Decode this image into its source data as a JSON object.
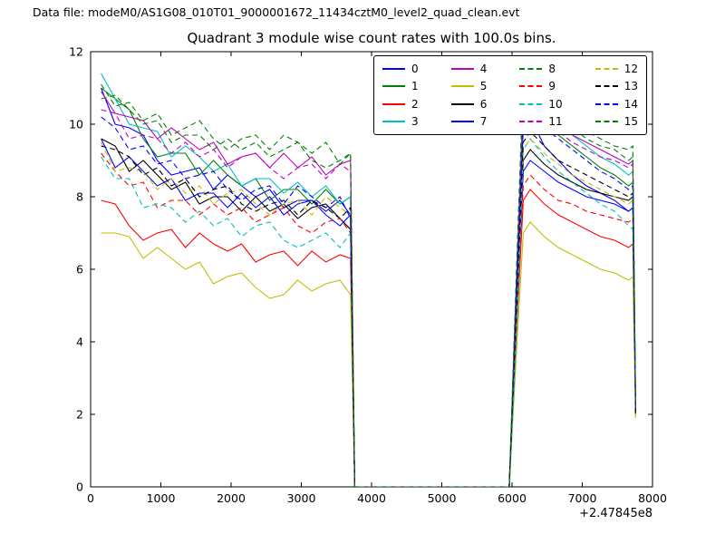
{
  "header": {
    "data_file_text": "Data file: modeM0/AS1G08_010T01_9000001672_11434cztM0_level2_quad_clean.evt"
  },
  "chart_data": {
    "type": "line",
    "title": "Quadrant 3 module wise count rates with 100.0s bins.",
    "xlabel": "",
    "ylabel": "",
    "x_axis_offset_label": "+2.47845e8",
    "xlim": [
      0,
      8000
    ],
    "ylim": [
      0,
      12
    ],
    "xticks": [
      0,
      1000,
      2000,
      3000,
      4000,
      5000,
      6000,
      7000,
      8000
    ],
    "yticks": [
      0,
      2,
      4,
      6,
      8,
      10,
      12
    ],
    "grid": false,
    "legend": {
      "columns": 4,
      "location": "upper center",
      "labels": [
        "0",
        "1",
        "2",
        "3",
        "4",
        "5",
        "6",
        "7",
        "8",
        "9",
        "10",
        "11",
        "12",
        "13",
        "14",
        "15"
      ]
    },
    "x": [
      150,
      350,
      550,
      750,
      950,
      1150,
      1350,
      1550,
      1750,
      1950,
      2150,
      2350,
      2550,
      2750,
      2950,
      3150,
      3350,
      3550,
      3700,
      3760,
      5960,
      6060,
      6160,
      6260,
      6460,
      6660,
      6860,
      7060,
      7260,
      7460,
      7660,
      7720,
      7760
    ],
    "series": [
      {
        "name": "0",
        "color": "#0000ff",
        "linestyle": "solid",
        "values": [
          11.0,
          10.0,
          9.9,
          9.7,
          9.0,
          8.6,
          8.7,
          8.8,
          8.2,
          8.6,
          8.3,
          8.0,
          8.2,
          7.7,
          7.9,
          7.9,
          7.6,
          7.9,
          7.5,
          0,
          0,
          5.1,
          9.9,
          10.2,
          9.4,
          9.0,
          8.6,
          8.3,
          8.1,
          7.9,
          7.6,
          7.7,
          2.0
        ]
      },
      {
        "name": "1",
        "color": "#007f00",
        "linestyle": "solid",
        "values": [
          11.0,
          10.7,
          10.4,
          9.6,
          9.1,
          9.2,
          9.2,
          8.6,
          9.0,
          8.6,
          8.3,
          8.5,
          7.9,
          8.2,
          8.2,
          7.8,
          8.2,
          7.8,
          8.0,
          0,
          0,
          5.3,
          10.2,
          10.5,
          10.1,
          9.7,
          9.4,
          9.1,
          8.8,
          8.6,
          8.3,
          8.4,
          2.1
        ]
      },
      {
        "name": "2",
        "color": "#ff0000",
        "linestyle": "solid",
        "values": [
          7.9,
          7.8,
          7.2,
          6.8,
          7.0,
          7.1,
          6.6,
          7.0,
          6.7,
          6.5,
          6.7,
          6.2,
          6.4,
          6.5,
          6.1,
          6.5,
          6.2,
          6.4,
          6.3,
          0,
          0,
          4.1,
          7.9,
          8.2,
          7.8,
          7.5,
          7.3,
          7.1,
          6.9,
          6.8,
          6.6,
          6.7,
          2.0
        ]
      },
      {
        "name": "3",
        "color": "#00bfbf",
        "linestyle": "solid",
        "values": [
          11.4,
          10.7,
          10.0,
          9.9,
          9.8,
          9.1,
          9.4,
          9.1,
          8.7,
          8.9,
          8.3,
          8.5,
          8.5,
          8.1,
          8.4,
          8.0,
          8.3,
          7.8,
          8.0,
          0,
          0,
          5.6,
          10.9,
          11.3,
          10.5,
          10.1,
          9.7,
          9.4,
          9.1,
          8.9,
          8.6,
          8.7,
          2.1
        ]
      },
      {
        "name": "4",
        "color": "#bf00bf",
        "linestyle": "solid",
        "values": [
          10.9,
          10.3,
          10.2,
          10.1,
          9.6,
          9.9,
          9.6,
          9.3,
          9.5,
          8.9,
          9.1,
          9.2,
          8.8,
          9.2,
          8.8,
          9.1,
          8.6,
          8.9,
          9.0,
          0,
          0,
          5.4,
          10.5,
          10.8,
          10.3,
          10.0,
          9.7,
          9.5,
          9.3,
          9.1,
          8.9,
          9.0,
          2.1
        ]
      },
      {
        "name": "5",
        "color": "#bfbf00",
        "linestyle": "solid",
        "values": [
          7.0,
          7.0,
          6.9,
          6.3,
          6.6,
          6.3,
          6.0,
          6.2,
          5.6,
          5.8,
          5.9,
          5.5,
          5.2,
          5.3,
          5.7,
          5.4,
          5.6,
          5.7,
          5.3,
          0,
          0,
          3.6,
          7.0,
          7.3,
          6.9,
          6.6,
          6.4,
          6.2,
          6.0,
          5.9,
          5.7,
          5.8,
          1.9
        ]
      },
      {
        "name": "6",
        "color": "#000000",
        "linestyle": "solid",
        "values": [
          9.6,
          9.4,
          8.7,
          9.0,
          8.6,
          8.2,
          8.4,
          7.8,
          8.0,
          8.0,
          7.6,
          8.0,
          7.6,
          7.8,
          7.4,
          7.7,
          7.8,
          7.4,
          7.1,
          0,
          0,
          4.7,
          9.0,
          9.3,
          8.9,
          8.6,
          8.4,
          8.2,
          8.1,
          8.0,
          7.9,
          8.0,
          2.0
        ]
      },
      {
        "name": "7",
        "color": "#0000ff",
        "linestyle": "solid",
        "values": [
          9.6,
          8.8,
          9.1,
          8.7,
          8.3,
          8.5,
          7.9,
          8.1,
          8.1,
          7.7,
          8.1,
          7.7,
          8.0,
          7.5,
          7.8,
          7.9,
          7.5,
          7.2,
          7.5,
          0,
          0,
          4.6,
          8.7,
          9.0,
          8.7,
          8.4,
          8.2,
          8.0,
          7.9,
          7.8,
          7.6,
          7.7,
          2.0
        ]
      },
      {
        "name": "8",
        "color": "#007f00",
        "linestyle": "dashed",
        "values": [
          10.7,
          10.8,
          10.4,
          10.0,
          10.1,
          9.5,
          9.7,
          9.7,
          9.3,
          9.6,
          9.3,
          9.5,
          9.1,
          9.3,
          9.5,
          9.0,
          8.8,
          9.0,
          9.2,
          0,
          0,
          5.5,
          10.6,
          10.9,
          10.4,
          10.1,
          9.9,
          9.6,
          9.4,
          9.3,
          9.0,
          9.1,
          2.2
        ]
      },
      {
        "name": "9",
        "color": "#ff0000",
        "linestyle": "dashed",
        "values": [
          9.2,
          8.7,
          8.3,
          8.4,
          7.7,
          7.9,
          7.9,
          7.5,
          7.8,
          7.5,
          7.7,
          7.3,
          7.5,
          7.7,
          7.2,
          7.0,
          7.3,
          7.4,
          7.0,
          0,
          0,
          4.4,
          8.3,
          8.6,
          8.2,
          7.9,
          7.8,
          7.6,
          7.5,
          7.4,
          7.3,
          7.4,
          2.0
        ]
      },
      {
        "name": "10",
        "color": "#00bfbf",
        "linestyle": "dashed",
        "values": [
          9.1,
          8.5,
          8.5,
          7.7,
          7.8,
          7.7,
          7.3,
          7.6,
          7.2,
          7.4,
          6.9,
          7.2,
          7.3,
          6.8,
          6.6,
          6.8,
          7.0,
          6.6,
          7.0,
          0,
          0,
          3.9,
          9.3,
          9.6,
          9.1,
          8.7,
          8.4,
          8.1,
          7.8,
          7.6,
          7.2,
          7.1,
          2.1
        ]
      },
      {
        "name": "11",
        "color": "#bf00bf",
        "linestyle": "dashed",
        "values": [
          10.4,
          10.3,
          9.6,
          9.7,
          9.6,
          9.2,
          9.5,
          9.1,
          9.3,
          8.8,
          9.1,
          9.2,
          8.8,
          8.5,
          8.8,
          8.9,
          8.5,
          8.9,
          8.7,
          0,
          0,
          5.3,
          10.3,
          10.6,
          10.1,
          9.8,
          9.5,
          9.3,
          9.1,
          9.0,
          8.8,
          8.9,
          2.1
        ]
      },
      {
        "name": "12",
        "color": "#bfbf00",
        "linestyle": "dashed",
        "values": [
          9.5,
          8.7,
          8.8,
          8.7,
          8.2,
          8.5,
          8.1,
          8.3,
          7.8,
          8.1,
          8.2,
          7.8,
          7.5,
          7.8,
          7.9,
          7.5,
          8.0,
          7.7,
          7.5,
          0,
          0,
          4.8,
          9.3,
          9.6,
          9.2,
          8.9,
          8.6,
          8.4,
          8.2,
          8.0,
          7.8,
          7.9,
          2.0
        ]
      },
      {
        "name": "13",
        "color": "#000000",
        "linestyle": "dashed",
        "values": [
          9.4,
          9.3,
          9.1,
          8.6,
          8.8,
          8.3,
          8.5,
          8.0,
          8.2,
          8.3,
          7.8,
          7.6,
          7.8,
          7.9,
          7.5,
          7.9,
          7.7,
          7.4,
          7.7,
          0,
          0,
          4.9,
          9.5,
          9.8,
          9.4,
          9.0,
          8.8,
          8.6,
          8.4,
          8.2,
          8.0,
          8.1,
          2.0
        ]
      },
      {
        "name": "14",
        "color": "#0000ff",
        "linestyle": "dashed",
        "values": [
          10.2,
          9.9,
          9.3,
          9.4,
          8.9,
          9.0,
          8.5,
          8.6,
          8.7,
          8.2,
          7.9,
          8.2,
          8.3,
          7.8,
          8.3,
          8.0,
          7.7,
          8.0,
          7.4,
          0,
          0,
          5.2,
          10.1,
          10.4,
          9.9,
          9.6,
          9.3,
          9.0,
          8.7,
          8.5,
          8.2,
          8.3,
          2.1
        ]
      },
      {
        "name": "15",
        "color": "#007f00",
        "linestyle": "dashed",
        "values": [
          11.1,
          10.5,
          10.6,
          10.1,
          10.3,
          9.7,
          9.9,
          10.1,
          9.6,
          9.3,
          9.6,
          9.7,
          9.3,
          9.7,
          9.5,
          9.2,
          9.5,
          8.9,
          9.2,
          0,
          0,
          5.8,
          11.3,
          11.7,
          10.9,
          10.4,
          10.1,
          9.8,
          9.6,
          9.4,
          9.3,
          9.4,
          2.2
        ]
      }
    ]
  }
}
